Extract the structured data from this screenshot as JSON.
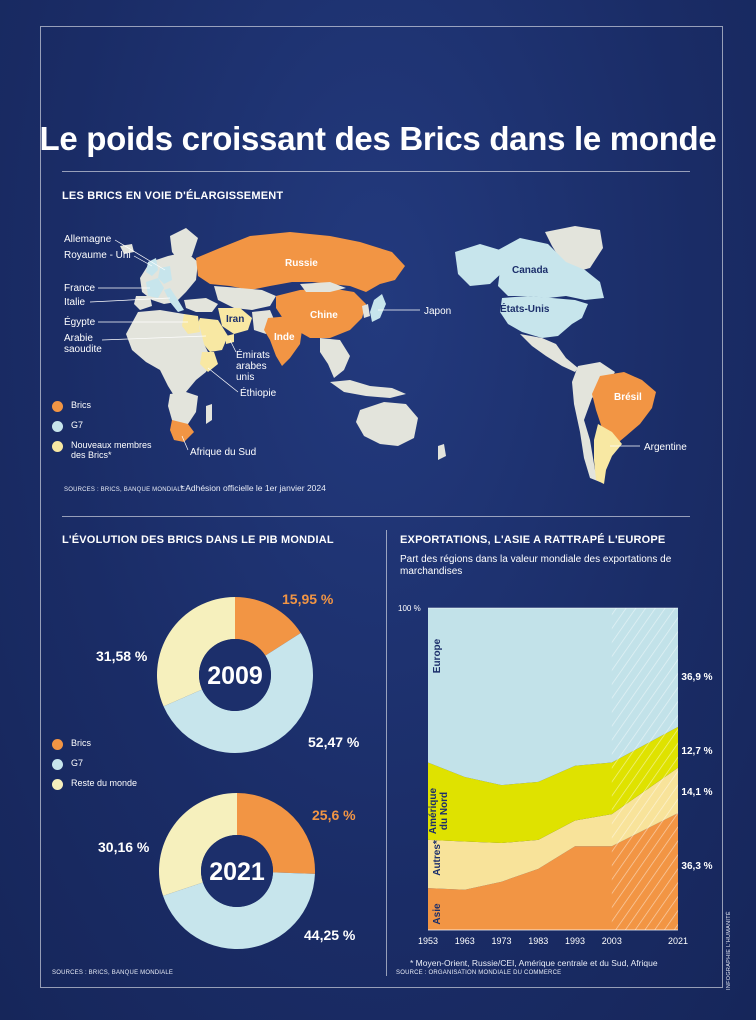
{
  "title": "Le poids croissant des Brics dans le monde",
  "map": {
    "section_title": "LES BRICS EN VOIE D'ÉLARGISSEMENT",
    "source": "SOURCES : BRICS, BANQUE MONDIALE",
    "footnote": "* Adhésion officielle le 1er janvier 2024",
    "labels": {
      "allemagne": "Allemagne",
      "royaume_uni": "Royaume - Uni",
      "france": "France",
      "italie": "Italie",
      "egypte": "Égypte",
      "arabie": "Arabie",
      "saoudite": "saoudite",
      "emirats1": "Émirats",
      "emirats2": "arabes",
      "emirats3": "unis",
      "ethiopie": "Éthiopie",
      "afrique_sud": "Afrique du Sud",
      "russie": "Russie",
      "chine": "Chine",
      "inde": "Inde",
      "iran": "Iran",
      "japon": "Japon",
      "canada": "Canada",
      "etats_unis": "États-Unis",
      "bresil": "Brésil",
      "argentine": "Argentine"
    },
    "legend": [
      {
        "label": "Brics",
        "color": "#f29544"
      },
      {
        "label": "G7",
        "color": "#c7e5ec"
      },
      {
        "label": "Nouveaux membres des Brics*",
        "color": "#f8e8a3"
      }
    ],
    "colors": {
      "brics": "#f29544",
      "g7": "#c7e5ec",
      "new": "#f8e8a3",
      "other": "#e3e4dc"
    }
  },
  "pib": {
    "section_title": "L'ÉVOLUTION DES BRICS DANS LE PIB MONDIAL",
    "source": "SOURCES : BRICS, BANQUE MONDIALE",
    "legend": [
      {
        "label": "Brics",
        "color": "#f29544"
      },
      {
        "label": "G7",
        "color": "#c7e5ec"
      },
      {
        "label": "Reste du monde",
        "color": "#f6f0bd"
      }
    ]
  },
  "exports": {
    "section_title": "EXPORTATIONS, L'ASIE A RATTRAPÉ L'EUROPE",
    "subtitle": "Part des régions dans la valeur mondiale des exportations de marchandises",
    "y_top_label": "100 %",
    "footnote": "* Moyen-Orient, Russie/CEI, Amérique centrale et du Sud, Afrique",
    "source": "SOURCE : ORGANISATION MONDIALE DU COMMERCE",
    "end_labels": [
      "36,9 %",
      "12,7 %",
      "14,1 %",
      "36,3 %"
    ]
  },
  "credit": "INFOGRAPHIE L'HUMANITÉ",
  "chart_data": [
    {
      "type": "pie",
      "title": "2009",
      "categories": [
        "Brics",
        "G7",
        "Reste du monde"
      ],
      "values": [
        15.95,
        52.47,
        31.58
      ],
      "value_labels": [
        "15,95 %",
        "52,47 %",
        "31,58 %"
      ],
      "colors": [
        "#f29544",
        "#c7e5ec",
        "#f6f0bd"
      ]
    },
    {
      "type": "pie",
      "title": "2021",
      "categories": [
        "Brics",
        "G7",
        "Reste du monde"
      ],
      "values": [
        25.6,
        44.25,
        30.16
      ],
      "value_labels": [
        "25,6 %",
        "44,25 %",
        "30,16 %"
      ],
      "colors": [
        "#f29544",
        "#c7e5ec",
        "#f6f0bd"
      ]
    },
    {
      "type": "area",
      "stacked": true,
      "x": [
        1953,
        1963,
        1973,
        1983,
        1993,
        2003,
        2021
      ],
      "x_ticks": [
        "1953",
        "1963",
        "1973",
        "1983",
        "1993",
        "2003",
        "2021"
      ],
      "ylim": [
        0,
        100
      ],
      "series": [
        {
          "name": "Asie",
          "color": "#f29544",
          "values": [
            13,
            12.5,
            15,
            19,
            26,
            26,
            36.3
          ]
        },
        {
          "name": "Autres*",
          "color": "#f8e39a",
          "values": [
            15,
            15,
            12,
            9,
            8,
            10,
            14.1
          ]
        },
        {
          "name": "Amérique du Nord",
          "color": "#dfe200",
          "values": [
            24,
            20,
            18,
            18,
            17,
            16,
            12.7
          ]
        },
        {
          "name": "Europe",
          "color": "#c2e2e9",
          "values": [
            48,
            52.5,
            55,
            54,
            49,
            48,
            36.9
          ]
        }
      ]
    }
  ]
}
